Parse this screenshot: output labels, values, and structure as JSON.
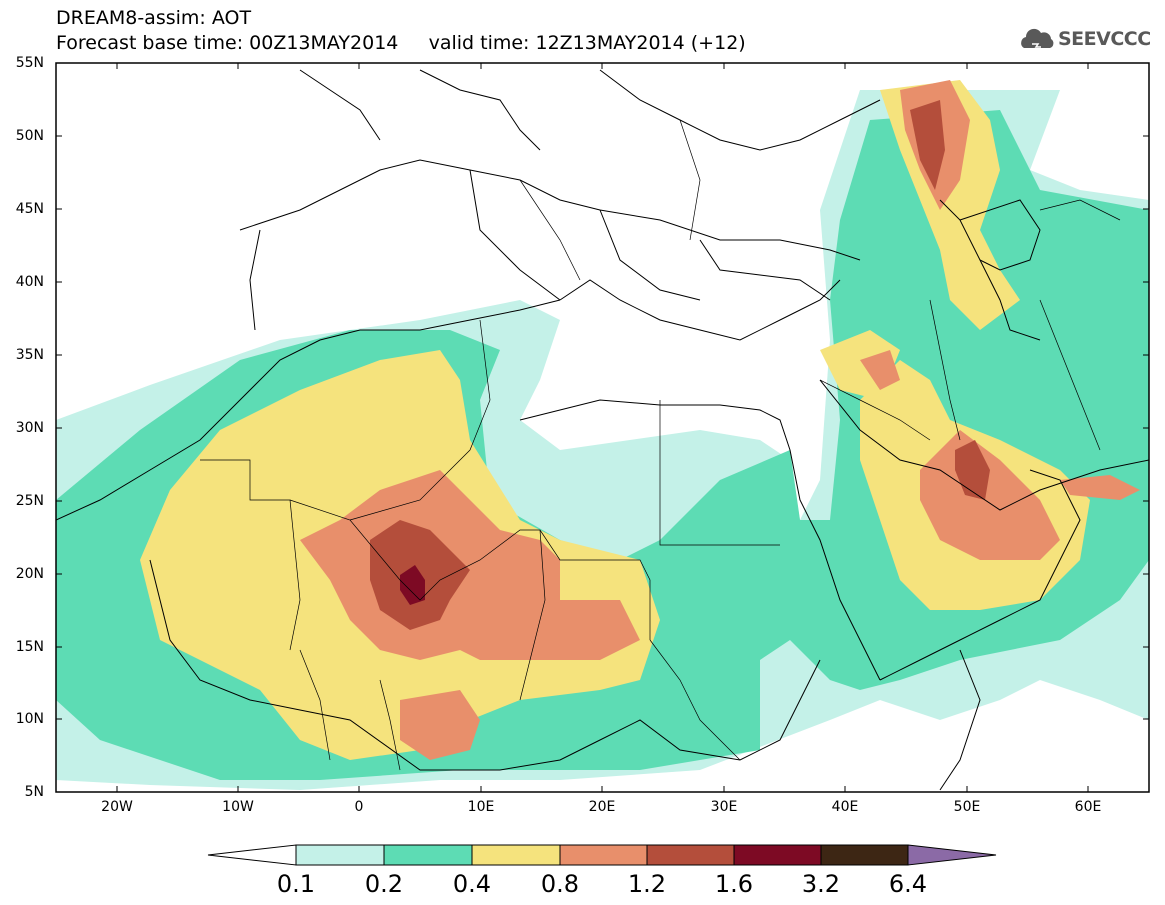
{
  "title": {
    "line1": "DREAM8-assim: AOT",
    "line2": "Forecast base time: 00Z13MAY2014     valid time: 12Z13MAY2014 (+12)"
  },
  "logo": {
    "text": "SEEVCCC",
    "icon": "cloud-icon"
  },
  "map": {
    "lat_labels": [
      "55N",
      "50N",
      "45N",
      "40N",
      "35N",
      "30N",
      "25N",
      "20N",
      "15N",
      "10N",
      "5N"
    ],
    "lon_labels": [
      "20W",
      "10W",
      "0",
      "10E",
      "20E",
      "30E",
      "40E",
      "50E",
      "60E"
    ],
    "lat_range": [
      5,
      55
    ],
    "lon_range": [
      -25,
      65
    ]
  },
  "colorbar": {
    "levels": [
      "0.1",
      "0.2",
      "0.4",
      "0.8",
      "1.2",
      "1.6",
      "3.2",
      "6.4"
    ],
    "colors": {
      "below": "#ffffff",
      "c1": "#c4f1e8",
      "c2": "#5ddcb4",
      "c3": "#f5e37d",
      "c4": "#e88f6b",
      "c5": "#b44e3b",
      "c6": "#7d0a24",
      "c7": "#3d2614",
      "above": "#8b6aa6"
    }
  }
}
